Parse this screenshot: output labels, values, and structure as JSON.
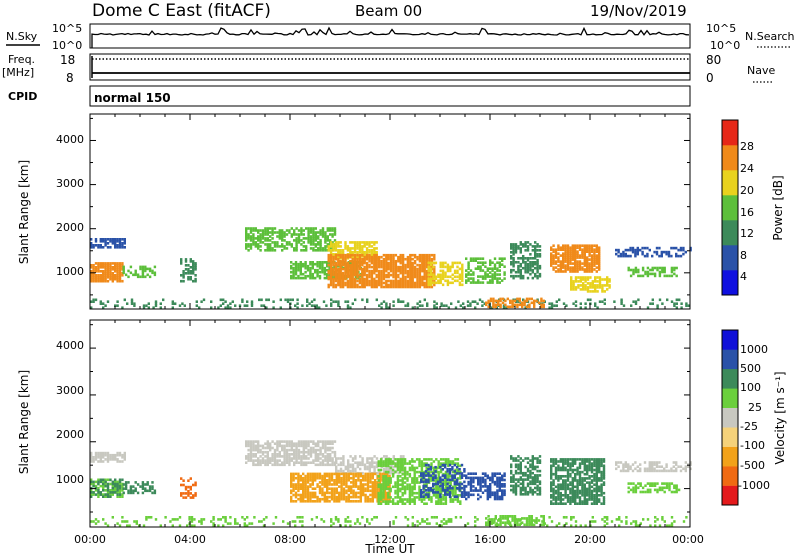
{
  "header": {
    "station": "Dome C East (fitACF)",
    "beam": "Beam 00",
    "date": "19/Nov/2019"
  },
  "status_panels": {
    "nsky_label": "N.Sky",
    "nsky_ticks": [
      "10^5",
      "10^0"
    ],
    "nsearch_label": "N.Search",
    "nsearch_ticks": [
      "10^5",
      "10^0"
    ],
    "freq_label": "Freq.",
    "freq_unit": "[MHz]",
    "freq_ticks": [
      "18",
      "8"
    ],
    "nave_label": "Nave",
    "nave_ticks": [
      "80",
      "0"
    ],
    "cpid_label": "CPID",
    "cpid_value": "normal 150"
  },
  "chart_data": [
    {
      "type": "heatmap",
      "title": "Power",
      "xlabel": "Time UT",
      "ylabel": "Slant Range [km]",
      "x_ticks": [
        "00:00",
        "04:00",
        "08:00",
        "12:00",
        "16:00",
        "20:00",
        "00:00"
      ],
      "xlim_hours": [
        0,
        24
      ],
      "y_ticks": [
        "1000",
        "2000",
        "3000",
        "4000"
      ],
      "ylim_km": [
        180,
        4600
      ],
      "colorbar_label": "Power [dB]",
      "colorbar_ticks": [
        "4",
        "8",
        "12",
        "16",
        "20",
        "24",
        "28"
      ],
      "colorbar_colors": [
        "#1010e0",
        "#2a52a8",
        "#3c8a5a",
        "#5cbf3a",
        "#e8d21e",
        "#f08a1a",
        "#e62818"
      ],
      "scatter_regions": [
        {
          "t0": 0.0,
          "t1": 1.4,
          "r0": 1550,
          "r1": 1750,
          "c": 1,
          "d": 0.7
        },
        {
          "t0": 0.0,
          "t1": 1.3,
          "r0": 780,
          "r1": 1200,
          "c": 5,
          "d": 0.85
        },
        {
          "t0": 1.3,
          "t1": 2.6,
          "r0": 880,
          "r1": 1120,
          "c": 3,
          "d": 0.5
        },
        {
          "t0": 3.6,
          "t1": 4.2,
          "r0": 780,
          "r1": 1300,
          "c": 2,
          "d": 0.5
        },
        {
          "t0": 6.2,
          "t1": 9.8,
          "r0": 1480,
          "r1": 2000,
          "c": 3,
          "d": 0.6
        },
        {
          "t0": 9.5,
          "t1": 11.5,
          "r0": 1300,
          "r1": 1700,
          "c": 4,
          "d": 0.7
        },
        {
          "t0": 8.0,
          "t1": 10.8,
          "r0": 850,
          "r1": 1250,
          "c": 3,
          "d": 0.7
        },
        {
          "t0": 9.5,
          "t1": 13.8,
          "r0": 650,
          "r1": 1400,
          "c": 5,
          "d": 0.85
        },
        {
          "t0": 13.5,
          "t1": 14.9,
          "r0": 700,
          "r1": 1200,
          "c": 4,
          "d": 0.6
        },
        {
          "t0": 15.0,
          "t1": 16.6,
          "r0": 750,
          "r1": 1300,
          "c": 3,
          "d": 0.55
        },
        {
          "t0": 16.8,
          "t1": 18.0,
          "r0": 850,
          "r1": 1700,
          "c": 2,
          "d": 0.6
        },
        {
          "t0": 18.4,
          "t1": 20.4,
          "r0": 1000,
          "r1": 1600,
          "c": 5,
          "d": 0.8
        },
        {
          "t0": 19.2,
          "t1": 20.8,
          "r0": 550,
          "r1": 900,
          "c": 4,
          "d": 0.7
        },
        {
          "t0": 21.0,
          "t1": 24.0,
          "r0": 1350,
          "r1": 1550,
          "c": 1,
          "d": 0.4
        },
        {
          "t0": 21.5,
          "t1": 23.6,
          "r0": 900,
          "r1": 1100,
          "c": 3,
          "d": 0.55
        },
        {
          "t0": 0.0,
          "t1": 24.0,
          "r0": 180,
          "r1": 380,
          "c": 2,
          "d": 0.2
        },
        {
          "t0": 15.8,
          "t1": 18.2,
          "r0": 200,
          "r1": 400,
          "c": 5,
          "d": 0.6
        }
      ]
    },
    {
      "type": "heatmap",
      "title": "Velocity",
      "xlabel": "Time UT",
      "ylabel": "Slant Range [km]",
      "x_ticks": [
        "00:00",
        "04:00",
        "08:00",
        "12:00",
        "16:00",
        "20:00",
        "00:00"
      ],
      "xlim_hours": [
        0,
        24
      ],
      "y_ticks": [
        "1000",
        "2000",
        "3000",
        "4000"
      ],
      "ylim_km": [
        180,
        4600
      ],
      "colorbar_label": "Velocity [m s⁻¹]",
      "colorbar_ticks": [
        "-1000",
        "-500",
        "-100",
        "-25",
        "25",
        "100",
        "500",
        "1000"
      ],
      "colorbar_colors": [
        "#e41a1c",
        "#f06a12",
        "#f2a21a",
        "#f5d27a",
        "#c8c8c0",
        "#6bcf3c",
        "#3c8a5a",
        "#2a52a8",
        "#1010d8"
      ],
      "scatter_regions": [
        {
          "t0": 0.0,
          "t1": 1.4,
          "r0": 1550,
          "r1": 1750,
          "c": 4,
          "d": 0.7
        },
        {
          "t0": 0.0,
          "t1": 1.3,
          "r0": 800,
          "r1": 1200,
          "c": 5,
          "d": 0.6
        },
        {
          "t0": 0.0,
          "t1": 1.3,
          "r0": 800,
          "r1": 1200,
          "c": 6,
          "d": 0.4
        },
        {
          "t0": 1.3,
          "t1": 2.6,
          "r0": 880,
          "r1": 1120,
          "c": 6,
          "d": 0.5
        },
        {
          "t0": 3.6,
          "t1": 4.2,
          "r0": 780,
          "r1": 1200,
          "c": 1,
          "d": 0.5
        },
        {
          "t0": 6.2,
          "t1": 9.8,
          "r0": 1480,
          "r1": 2000,
          "c": 4,
          "d": 0.7
        },
        {
          "t0": 9.8,
          "t1": 12.5,
          "r0": 1300,
          "r1": 1700,
          "c": 4,
          "d": 0.6
        },
        {
          "t0": 8.0,
          "t1": 12.0,
          "r0": 700,
          "r1": 1300,
          "c": 2,
          "d": 0.8
        },
        {
          "t0": 11.5,
          "t1": 14.8,
          "r0": 650,
          "r1": 1600,
          "c": 5,
          "d": 0.6
        },
        {
          "t0": 13.2,
          "t1": 15.0,
          "r0": 800,
          "r1": 1500,
          "c": 7,
          "d": 0.5
        },
        {
          "t0": 15.0,
          "t1": 16.6,
          "r0": 750,
          "r1": 1300,
          "c": 7,
          "d": 0.6
        },
        {
          "t0": 16.8,
          "t1": 18.0,
          "r0": 850,
          "r1": 1700,
          "c": 6,
          "d": 0.6
        },
        {
          "t0": 18.4,
          "t1": 20.6,
          "r0": 650,
          "r1": 1600,
          "c": 6,
          "d": 0.75
        },
        {
          "t0": 21.0,
          "t1": 24.0,
          "r0": 1350,
          "r1": 1550,
          "c": 4,
          "d": 0.5
        },
        {
          "t0": 21.5,
          "t1": 23.6,
          "r0": 900,
          "r1": 1100,
          "c": 5,
          "d": 0.55
        },
        {
          "t0": 0.0,
          "t1": 24.0,
          "r0": 180,
          "r1": 400,
          "c": 5,
          "d": 0.2
        },
        {
          "t0": 15.8,
          "t1": 18.2,
          "r0": 200,
          "r1": 400,
          "c": 5,
          "d": 0.6
        }
      ]
    }
  ]
}
